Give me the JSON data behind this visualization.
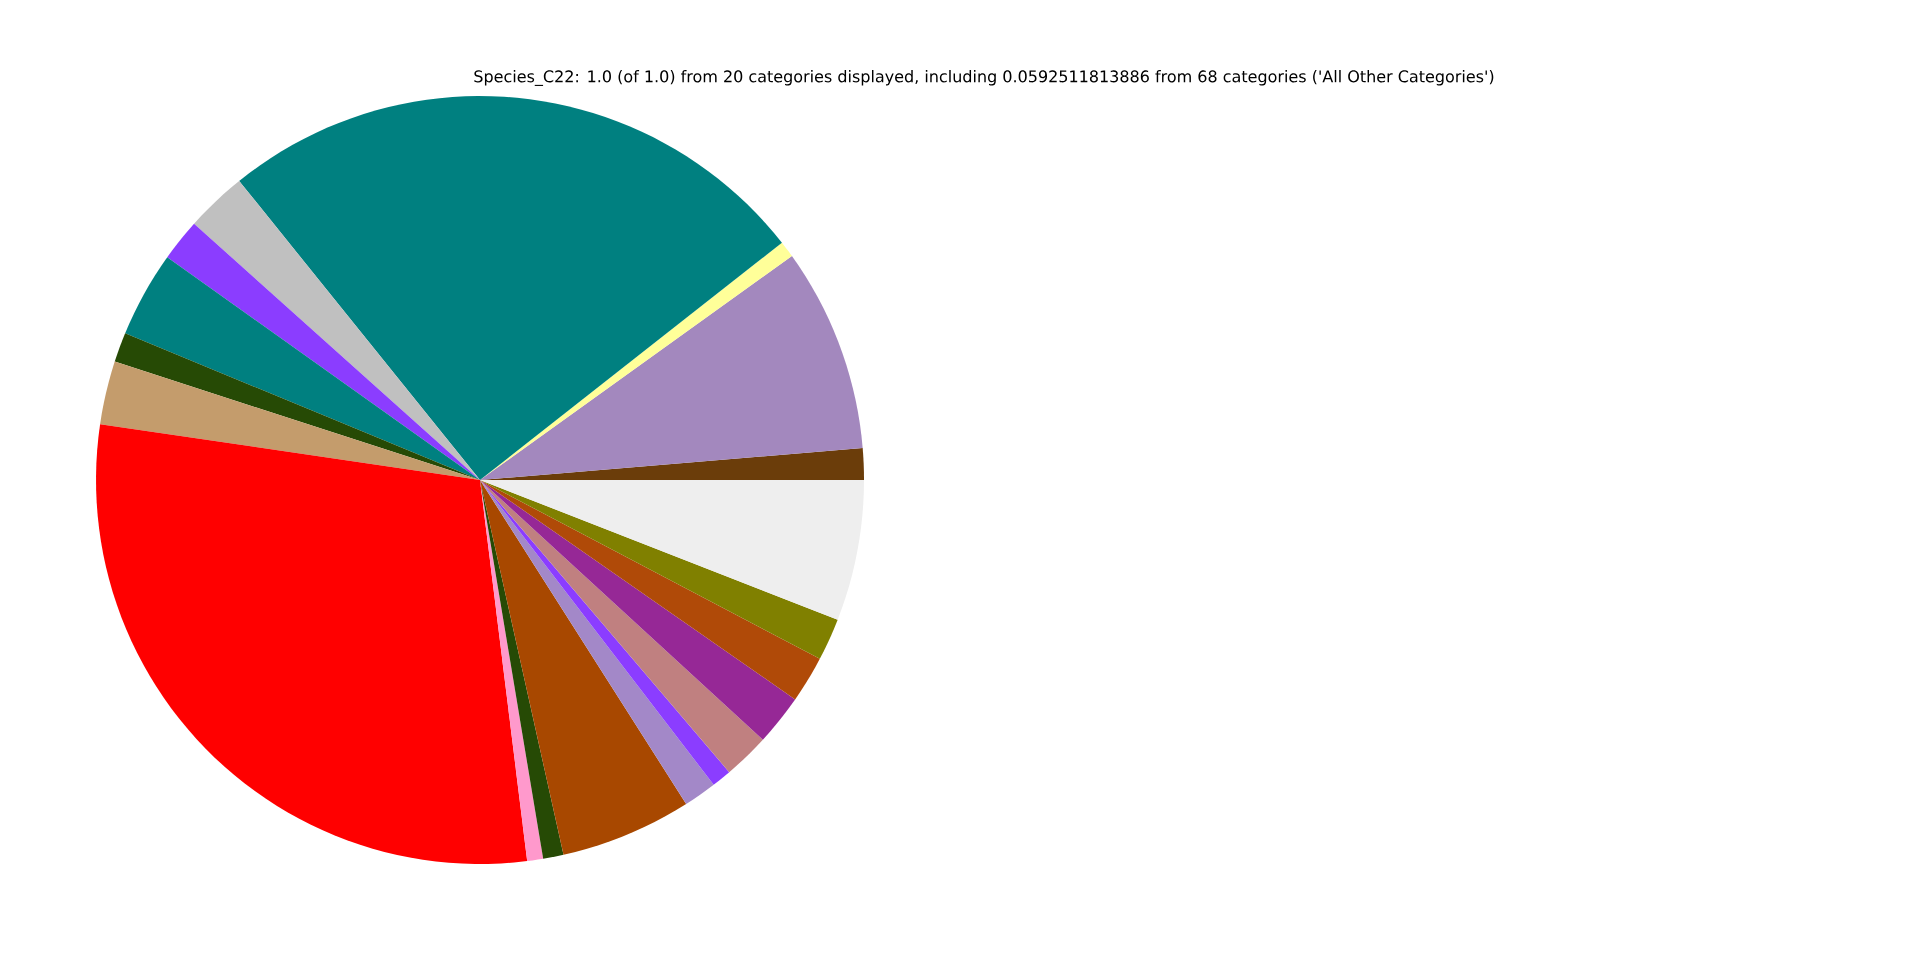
{
  "chart_data": {
    "type": "pie",
    "title": "Species_C22: 1.0 (of 1.0) from 20 categories displayed, including 0.0592511813886 from 68 categories ('All Other Categories')",
    "categories": [
      null,
      null,
      null,
      null,
      null,
      null,
      null,
      null,
      null,
      null,
      null,
      null,
      null,
      null,
      null,
      null,
      null,
      null,
      null,
      null
    ],
    "values": [
      1.33,
      8.58,
      0.69,
      25.19,
      2.58,
      1.78,
      3.61,
      1.25,
      2.67,
      29.28,
      0.67,
      0.86,
      5.53,
      1.39,
      0.83,
      1.94,
      2.14,
      1.97,
      1.78,
      5.93
    ],
    "colors": [
      "#6b3d0a",
      "#a388be",
      "#ffff99",
      "#008080",
      "#c0c0c0",
      "#8b3dff",
      "#008080",
      "#264a05",
      "#c49c6c",
      "#ff0000",
      "#ff99cc",
      "#264a05",
      "#a84800",
      "#a388c8",
      "#8b3dff",
      "#c08080",
      "#962896",
      "#b04a08",
      "#808000",
      "#eeeeee"
    ]
  }
}
